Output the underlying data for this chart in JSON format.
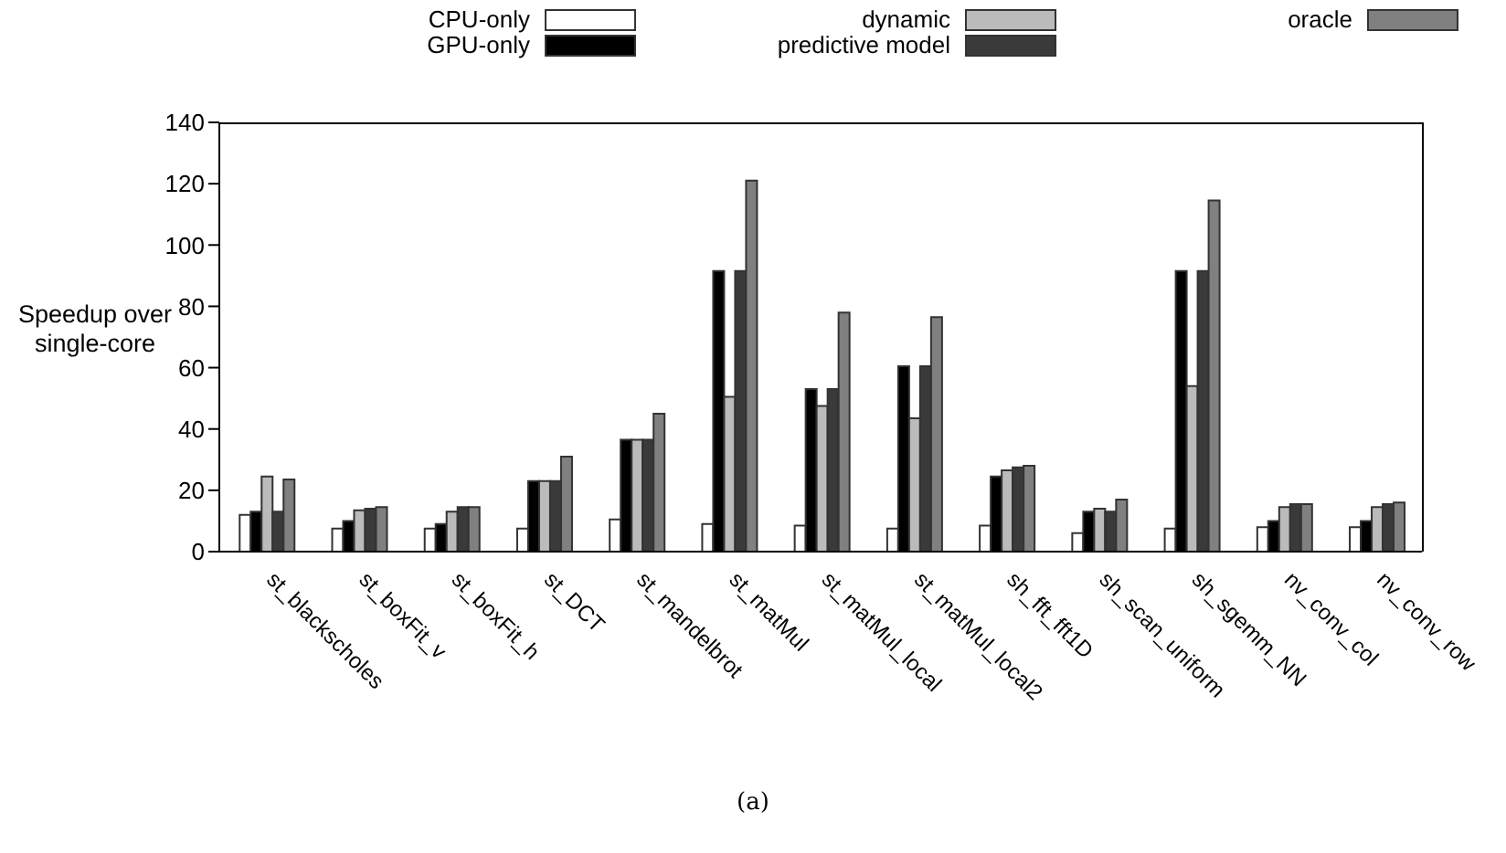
{
  "chart_data": {
    "type": "bar",
    "ylabel": "Speedup over single-core",
    "categories": [
      "st_blackscholes",
      "st_boxFit_v",
      "st_boxFit_h",
      "st_DCT",
      "st_mandelbrot",
      "st_matMul",
      "st_matMul_local",
      "st_matMul_local2",
      "sh_fft_fft1D",
      "sh_scan_uniform",
      "sh_sgemm_NN",
      "nv_conv_col",
      "nv_conv_row"
    ],
    "series": [
      {
        "name": "CPU-only",
        "color": "#ffffff",
        "values": [
          12,
          7.5,
          7.5,
          7.5,
          10.5,
          9,
          8.5,
          7.5,
          8.5,
          6,
          7.5,
          8,
          8
        ]
      },
      {
        "name": "GPU-only",
        "color": "#000000",
        "values": [
          13,
          10,
          9,
          23,
          36.5,
          91.5,
          53,
          60.5,
          24.5,
          13,
          91.5,
          10,
          10
        ]
      },
      {
        "name": "dynamic",
        "color": "#bbbbbb",
        "values": [
          24.5,
          13.5,
          13,
          23,
          36.5,
          50.5,
          47.5,
          43.5,
          26.5,
          14,
          54,
          14.5,
          14.5
        ]
      },
      {
        "name": "predictive model",
        "color": "#3a3a3a",
        "values": [
          13,
          14,
          14.5,
          23,
          36.5,
          91.5,
          53,
          60.5,
          27.5,
          13,
          91.5,
          15.5,
          15.5
        ]
      },
      {
        "name": "oracle",
        "color": "#808080",
        "values": [
          23.5,
          14.5,
          14.5,
          31,
          45,
          121,
          78,
          76.5,
          28,
          17,
          114.5,
          15.5,
          16
        ]
      }
    ],
    "ylim": [
      0,
      140
    ],
    "yticks": [
      0,
      20,
      40,
      60,
      80,
      100,
      120,
      140
    ],
    "grid": false,
    "legend": "top",
    "annotations": [
      "(a)"
    ]
  }
}
